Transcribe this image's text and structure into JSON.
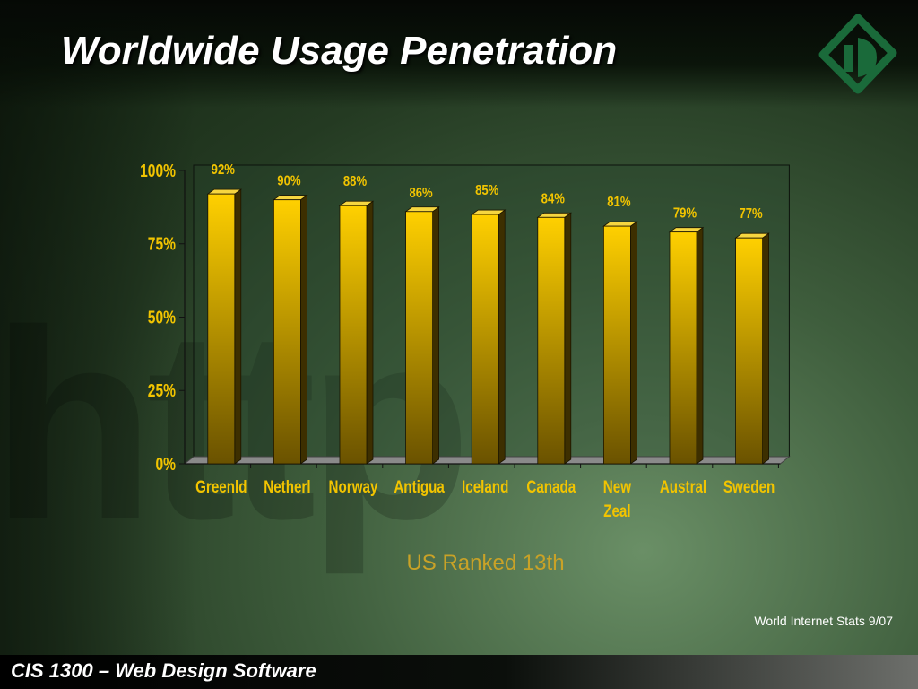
{
  "slide": {
    "title": "Worldwide Usage Penetration",
    "subtitle": "US Ranked 13th",
    "source": "World Internet Stats   9/07",
    "footer": "CIS 1300 – Web Design Software"
  },
  "colors": {
    "bar_top": "#ffd000",
    "bar_bottom": "#6a5200",
    "label": "#f2c400",
    "title": "#ffffff",
    "subtitle": "#c9a227"
  },
  "chart_data": {
    "type": "bar",
    "categories": [
      "Greenld",
      "Netherl",
      "Norway",
      "Antigua",
      "Iceland",
      "Canada",
      "New Zeal",
      "Austral",
      "Sweden"
    ],
    "category_lines": [
      [
        "Greenld"
      ],
      [
        "Netherl"
      ],
      [
        "Norway"
      ],
      [
        "Antigua"
      ],
      [
        "Iceland"
      ],
      [
        "Canada"
      ],
      [
        "New",
        "Zeal"
      ],
      [
        "Austral"
      ],
      [
        "Sweden"
      ]
    ],
    "values": [
      92,
      90,
      88,
      86,
      85,
      84,
      81,
      79,
      77
    ],
    "value_labels": [
      "92%",
      "90%",
      "88%",
      "86%",
      "85%",
      "84%",
      "81%",
      "79%",
      "77%"
    ],
    "yticks": [
      0,
      25,
      50,
      75,
      100
    ],
    "ytick_labels": [
      "0%",
      "25%",
      "50%",
      "75%",
      "100%"
    ],
    "ylim": [
      0,
      100
    ],
    "title": "",
    "xlabel": "",
    "ylabel": "",
    "grid": false,
    "three_d": true
  }
}
